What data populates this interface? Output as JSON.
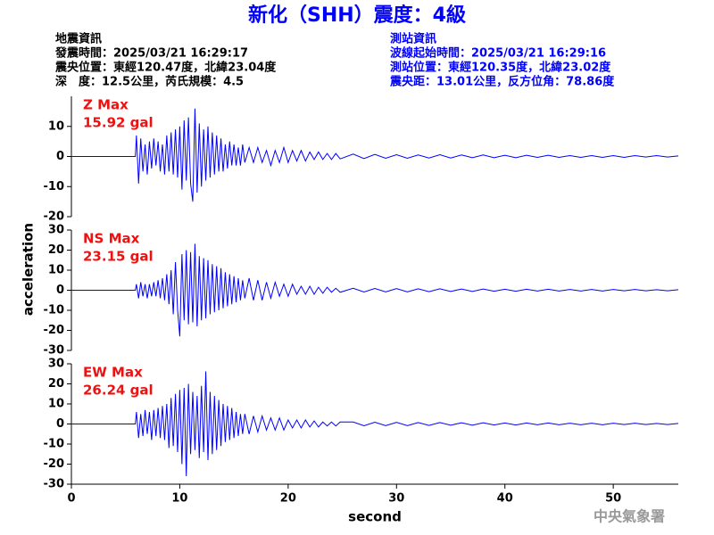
{
  "header": {
    "title": "新化（SHH）震度：4級",
    "left": [
      "地震資訊",
      "發震時間：2025/03/21 16:29:17",
      "震央位置：東經120.47度，北緯23.04度",
      "深　度：12.5公里，芮氏規模：4.5"
    ],
    "right": [
      "測站資訊",
      "波線起始時間：2025/03/21 16:29:16",
      "測站位置：東經120.35度，北緯23.02度",
      "震央距：13.01公里，反方位角：78.86度"
    ],
    "ylabel": "acceleration",
    "footer": "中央氣象署"
  },
  "chart_data": [
    {
      "type": "line",
      "annotations": [
        "Z Max",
        "15.92 gal"
      ],
      "xlim": [
        0,
        56
      ],
      "ylim": [
        -20,
        20
      ],
      "yticks": [
        -20,
        -10,
        0,
        10
      ],
      "x": [
        0,
        5.9,
        6.0,
        6.2,
        6.4,
        6.6,
        6.8,
        7.0,
        7.2,
        7.4,
        7.6,
        7.8,
        8.0,
        8.2,
        8.4,
        8.6,
        8.8,
        9.0,
        9.2,
        9.4,
        9.6,
        9.8,
        10.0,
        10.2,
        10.4,
        10.6,
        10.8,
        11.0,
        11.2,
        11.4,
        11.6,
        11.8,
        12.0,
        12.2,
        12.4,
        12.6,
        12.8,
        13.0,
        13.2,
        13.4,
        13.6,
        13.8,
        14.0,
        14.2,
        14.4,
        14.6,
        14.8,
        15.0,
        15.2,
        15.4,
        15.6,
        15.8,
        16.0,
        16.4,
        16.8,
        17.2,
        17.6,
        18.0,
        18.4,
        18.8,
        19.2,
        19.6,
        20.0,
        20.4,
        20.8,
        21.2,
        21.6,
        22.0,
        22.4,
        22.8,
        23.2,
        23.6,
        24.0,
        24.4,
        24.8,
        26,
        27,
        28,
        29,
        30,
        31,
        32,
        33,
        34,
        35,
        36,
        37,
        38,
        39,
        40,
        41,
        42,
        43,
        44,
        45,
        46,
        47,
        48,
        49,
        50,
        51,
        52,
        53,
        54,
        55,
        56
      ],
      "series": [
        {
          "color": "#0000ff",
          "values": [
            0,
            0,
            7,
            -9,
            6,
            -5,
            4,
            -6,
            5,
            -4,
            6,
            -3,
            5,
            -5,
            4,
            -6,
            7,
            -5,
            8,
            -6,
            9,
            -7,
            10,
            -11,
            12,
            -8,
            13,
            -9,
            -15,
            15.92,
            -12,
            11,
            -10,
            9,
            -8,
            10,
            -7,
            8,
            -6,
            7,
            -5,
            6,
            -5,
            4,
            -4,
            5,
            -3,
            4,
            -3,
            3,
            -3,
            4,
            -2,
            3,
            -2,
            3,
            -2,
            2,
            -3,
            2,
            -2,
            3,
            -2,
            2,
            -1.5,
            2,
            -1.5,
            1.5,
            -1,
            1.5,
            -1,
            1,
            -1,
            1,
            -0.8,
            0.8,
            -0.7,
            0.7,
            -0.6,
            0.6,
            -0.6,
            0.5,
            -0.5,
            0.6,
            -0.5,
            0.5,
            -0.4,
            0.5,
            -0.4,
            0.4,
            -0.4,
            0.4,
            -0.3,
            0.4,
            -0.3,
            0.3,
            -0.3,
            0.3,
            -0.3,
            0.3,
            -0.3,
            0.3,
            -0.2,
            0.3,
            -0.2,
            0.2
          ]
        }
      ]
    },
    {
      "type": "line",
      "annotations": [
        "NS Max",
        "23.15 gal"
      ],
      "xlim": [
        0,
        56
      ],
      "ylim": [
        -30,
        30
      ],
      "yticks": [
        -30,
        -20,
        -10,
        0,
        10,
        20,
        30
      ],
      "x": [
        0,
        5.9,
        6.0,
        6.2,
        6.4,
        6.6,
        6.8,
        7.0,
        7.2,
        7.4,
        7.6,
        7.8,
        8.0,
        8.2,
        8.4,
        8.6,
        8.8,
        9.0,
        9.2,
        9.4,
        9.6,
        9.8,
        10.0,
        10.2,
        10.4,
        10.6,
        10.8,
        11.0,
        11.2,
        11.4,
        11.6,
        11.8,
        12.0,
        12.2,
        12.4,
        12.6,
        12.8,
        13.0,
        13.2,
        13.4,
        13.6,
        13.8,
        14.0,
        14.2,
        14.4,
        14.6,
        14.8,
        15.0,
        15.2,
        15.4,
        15.6,
        15.8,
        16.0,
        16.4,
        16.8,
        17.2,
        17.6,
        18.0,
        18.4,
        18.8,
        19.2,
        19.6,
        20.0,
        20.4,
        20.8,
        21.2,
        21.6,
        22.0,
        22.4,
        22.8,
        23.2,
        23.6,
        24.0,
        24.4,
        24.8,
        26,
        27,
        28,
        29,
        30,
        31,
        32,
        33,
        34,
        35,
        36,
        37,
        38,
        39,
        40,
        41,
        42,
        43,
        44,
        45,
        46,
        47,
        48,
        49,
        50,
        51,
        52,
        53,
        54,
        55,
        56
      ],
      "series": [
        {
          "color": "#0000ff",
          "values": [
            0,
            0,
            3,
            -4,
            4,
            -3,
            3,
            -4,
            3,
            -3,
            4,
            -3,
            5,
            -4,
            6,
            -5,
            8,
            -7,
            10,
            -12,
            14,
            -10,
            -23,
            18,
            -15,
            20,
            -17,
            19,
            -16,
            23.15,
            -18,
            17,
            -15,
            16,
            -14,
            15,
            -12,
            13,
            -11,
            12,
            -10,
            11,
            -9,
            9,
            -8,
            8,
            -7,
            7,
            -6,
            6,
            -5,
            5,
            -4,
            6,
            -5,
            5,
            -5,
            4,
            -4,
            4,
            -3,
            3,
            -3,
            3,
            -2,
            2,
            -2,
            2,
            -2,
            1.5,
            -1.5,
            1.5,
            -1,
            1,
            -1,
            1,
            -0.9,
            0.9,
            -0.8,
            0.8,
            -0.8,
            0.7,
            -0.7,
            0.7,
            -0.6,
            0.6,
            -0.6,
            0.6,
            -0.5,
            0.5,
            -0.5,
            0.5,
            -0.4,
            0.5,
            -0.4,
            0.4,
            -0.4,
            0.4,
            -0.4,
            0.4,
            -0.3,
            0.4,
            -0.3,
            0.3,
            -0.3,
            0.3
          ]
        }
      ]
    },
    {
      "type": "line",
      "annotations": [
        "EW Max",
        "26.24 gal"
      ],
      "xlabel": "second",
      "xlim": [
        0,
        56
      ],
      "ylim": [
        -30,
        30
      ],
      "yticks": [
        -30,
        -20,
        -10,
        0,
        10,
        20,
        30
      ],
      "xticks": [
        0,
        10,
        20,
        30,
        40,
        50
      ],
      "x": [
        0,
        5.9,
        6.0,
        6.2,
        6.4,
        6.6,
        6.8,
        7.0,
        7.2,
        7.4,
        7.6,
        7.8,
        8.0,
        8.2,
        8.4,
        8.6,
        8.8,
        9.0,
        9.2,
        9.4,
        9.6,
        9.8,
        10.0,
        10.2,
        10.4,
        10.6,
        10.8,
        11.0,
        11.2,
        11.4,
        11.6,
        11.8,
        12.0,
        12.2,
        12.4,
        12.6,
        12.8,
        13.0,
        13.2,
        13.4,
        13.6,
        13.8,
        14.0,
        14.2,
        14.4,
        14.6,
        14.8,
        15.0,
        15.2,
        15.4,
        15.6,
        15.8,
        16.0,
        16.4,
        16.8,
        17.2,
        17.6,
        18.0,
        18.4,
        18.8,
        19.2,
        19.6,
        20.0,
        20.4,
        20.8,
        21.2,
        21.6,
        22.0,
        22.4,
        22.8,
        23.2,
        23.6,
        24.0,
        24.4,
        24.8,
        26,
        27,
        28,
        29,
        30,
        31,
        32,
        33,
        34,
        35,
        36,
        37,
        38,
        39,
        40,
        41,
        42,
        43,
        44,
        45,
        46,
        47,
        48,
        49,
        50,
        51,
        52,
        53,
        54,
        55,
        56
      ],
      "series": [
        {
          "color": "#0000ff",
          "values": [
            0,
            0,
            6,
            -7,
            5,
            -6,
            7,
            -5,
            6,
            -8,
            7,
            -6,
            8,
            -7,
            9,
            -8,
            10,
            -12,
            13,
            -11,
            15,
            -14,
            17,
            -20,
            18,
            -26,
            20,
            -15,
            16,
            -13,
            14,
            -17,
            19,
            -14,
            26.24,
            -18,
            16,
            -15,
            14,
            -13,
            12,
            -11,
            10,
            -9,
            9,
            -8,
            8,
            -7,
            6,
            -6,
            5,
            -5,
            5,
            -5,
            4,
            -4,
            4,
            -3,
            3,
            -3,
            3,
            -3,
            2,
            -2,
            2,
            -2,
            2,
            -1.5,
            1.5,
            -1.5,
            1,
            -1,
            1,
            -1,
            1,
            1,
            -0.9,
            0.9,
            -0.8,
            0.8,
            -0.8,
            0.7,
            -0.7,
            0.7,
            -0.6,
            0.6,
            -0.6,
            0.6,
            -0.5,
            0.5,
            -0.5,
            0.5,
            -0.4,
            0.5,
            -0.4,
            0.4,
            -0.4,
            0.4,
            -0.4,
            0.4,
            -0.3,
            0.4,
            -0.3,
            0.3,
            -0.3,
            0.3
          ]
        }
      ]
    }
  ]
}
